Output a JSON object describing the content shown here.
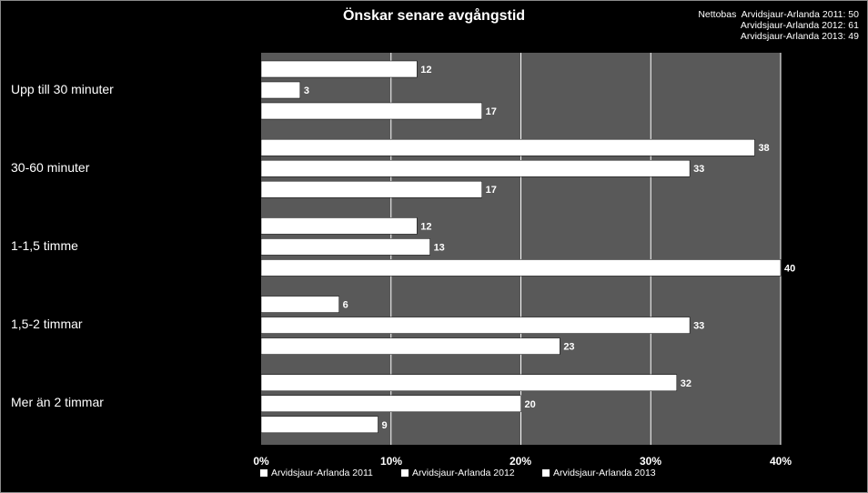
{
  "chart_data": {
    "type": "bar",
    "orientation": "horizontal",
    "title": "Önskar senare avgångstid",
    "categories": [
      "Upp till 30 minuter",
      "30-60 minuter",
      "1-1,5 timme",
      "1,5-2 timmar",
      "Mer än 2 timmar"
    ],
    "series": [
      {
        "name": "Arvidsjaur-Arlanda 2011",
        "values": [
          12,
          38,
          12,
          6,
          32
        ]
      },
      {
        "name": "Arvidsjaur-Arlanda 2012",
        "values": [
          3,
          33,
          13,
          33,
          20
        ]
      },
      {
        "name": "Arvidsjaur-Arlanda 2013",
        "values": [
          17,
          17,
          40,
          23,
          9
        ]
      }
    ],
    "xlim": [
      0,
      40
    ],
    "xticks": [
      "0%",
      "10%",
      "20%",
      "30%",
      "40%"
    ],
    "grid": true,
    "legend_position": "bottom",
    "nettobas": {
      "label": "Nettobas",
      "rows": [
        "Arvidsjaur-Arlanda 2011: 50",
        "Arvidsjaur-Arlanda 2012: 61",
        "Arvidsjaur-Arlanda 2013: 49"
      ]
    },
    "colors": {
      "background": "#000000",
      "plot_area": "#595959",
      "bar": "#ffffff",
      "bar_label": "#ffffff",
      "grid": "#ffffff"
    }
  }
}
